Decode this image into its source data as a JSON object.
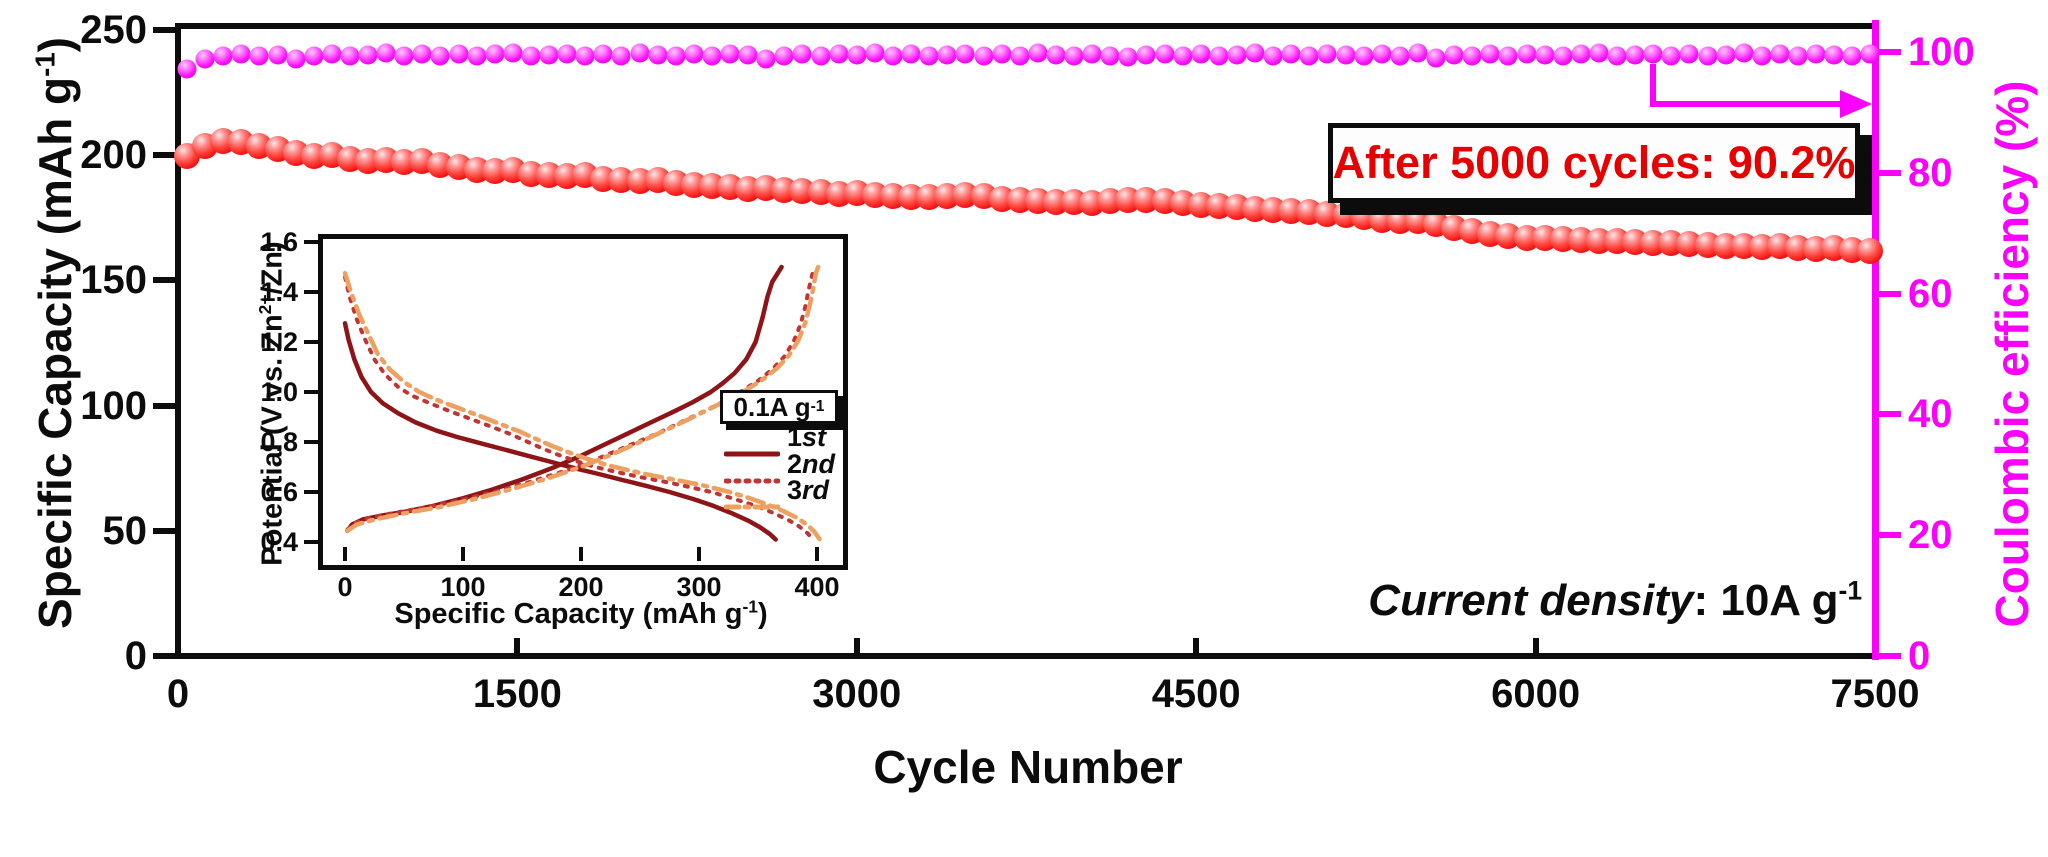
{
  "figure": {
    "annotation": {
      "text": "After 5000 cycles: 90.2%"
    },
    "current_density": {
      "italic": "Current density",
      "rest": ": 10A g",
      "sup": "-1"
    },
    "colors": {
      "capacity_red": "#f41515",
      "efficiency_magenta": "#fb00fb",
      "annotation_red": "#e60000",
      "axis_black": "#0c0c0c",
      "curve_1st": "#8e1418",
      "curve_2nd": "#c03434",
      "curve_3rd": "#eda05f"
    }
  },
  "chart_data": [
    {
      "type": "scatter",
      "title": "",
      "xlabel": "Cycle Number",
      "ylabel_left": {
        "pre": "Specific Capacity (mAh g",
        "sup": "-1",
        "post": ")"
      },
      "ylabel_right": "Coulombic efficiency (%)",
      "xlim": [
        0,
        7500
      ],
      "ylim_left": [
        0,
        250
      ],
      "ylim_right": [
        0,
        100
      ],
      "x_ticks": [
        0,
        1500,
        3000,
        4500,
        6000,
        7500
      ],
      "y_ticks_left": [
        0,
        50,
        100,
        150,
        200,
        250
      ],
      "y_ticks_right": [
        0,
        20,
        40,
        60,
        80,
        100
      ],
      "grid": false,
      "cycles": [
        40,
        120,
        200,
        280,
        360,
        440,
        520,
        600,
        680,
        760,
        840,
        920,
        1000,
        1080,
        1160,
        1240,
        1320,
        1400,
        1480,
        1560,
        1640,
        1720,
        1800,
        1880,
        1960,
        2040,
        2120,
        2200,
        2280,
        2360,
        2440,
        2520,
        2600,
        2680,
        2760,
        2840,
        2920,
        3000,
        3080,
        3160,
        3240,
        3320,
        3400,
        3480,
        3560,
        3640,
        3720,
        3800,
        3880,
        3960,
        4040,
        4120,
        4200,
        4280,
        4360,
        4440,
        4520,
        4600,
        4680,
        4760,
        4840,
        4920,
        5000,
        5080,
        5160,
        5240,
        5320,
        5400,
        5480,
        5560,
        5640,
        5720,
        5800,
        5880,
        5960,
        6040,
        6120,
        6200,
        6280,
        6360,
        6440,
        6520,
        6600,
        6680,
        6760,
        6840,
        6920,
        7000,
        7080,
        7160,
        7240,
        7320,
        7400,
        7480
      ],
      "series": [
        {
          "name": "Specific Capacity",
          "axis": "left",
          "marker": "red-ball",
          "values": [
            199.6,
            203.8,
            205.6,
            205.2,
            203.6,
            202.6,
            200.8,
            199.6,
            199.9,
            198.6,
            197.6,
            197.9,
            197.1,
            197.6,
            196.1,
            195.2,
            194.2,
            193.6,
            193.9,
            192.6,
            192.1,
            191.6,
            191.9,
            190.6,
            190.1,
            189.6,
            189.9,
            188.7,
            188.2,
            187.7,
            187.2,
            186.7,
            187.0,
            186.2,
            185.7,
            185.2,
            184.7,
            185.0,
            184.2,
            183.7,
            183.2,
            183.4,
            183.7,
            184.1,
            183.6,
            182.7,
            182.2,
            181.7,
            181.2,
            181.4,
            181.1,
            181.6,
            182.1,
            182.3,
            181.9,
            181.1,
            180.2,
            179.7,
            179.2,
            178.7,
            178.2,
            177.7,
            177.2,
            176.7,
            176.1,
            175.2,
            174.3,
            173.7,
            173.9,
            172.6,
            171.1,
            169.6,
            168.6,
            167.6,
            167.1,
            166.9,
            166.6,
            166.1,
            165.9,
            165.6,
            165.3,
            165.1,
            164.9,
            164.6,
            164.1,
            163.9,
            163.6,
            163.3,
            163.6,
            163.1,
            162.6,
            162.9,
            162.1,
            161.6
          ]
        },
        {
          "name": "Coulombic efficiency",
          "axis": "right",
          "marker": "magenta-ball",
          "values": [
            97.2,
            98.9,
            99.4,
            99.6,
            99.3,
            99.5,
            98.9,
            99.4,
            99.7,
            99.3,
            99.5,
            99.8,
            99.4,
            99.6,
            99.3,
            99.7,
            99.4,
            99.6,
            99.8,
            99.3,
            99.5,
            99.7,
            99.4,
            99.6,
            99.3,
            99.8,
            99.5,
            99.3,
            99.6,
            99.4,
            99.7,
            99.5,
            98.9,
            99.4,
            99.6,
            99.3,
            99.7,
            99.5,
            99.8,
            99.4,
            99.6,
            99.3,
            99.5,
            99.7,
            99.4,
            99.6,
            99.3,
            99.8,
            99.5,
            99.4,
            99.6,
            99.3,
            99.1,
            99.5,
            99.7,
            99.4,
            99.6,
            99.3,
            99.5,
            99.8,
            99.4,
            99.6,
            99.3,
            99.7,
            99.5,
            99.4,
            99.6,
            99.3,
            99.8,
            99.0,
            99.5,
            99.4,
            99.6,
            99.3,
            99.7,
            99.5,
            99.4,
            99.6,
            99.8,
            99.3,
            99.5,
            99.7,
            99.4,
            99.6,
            99.3,
            99.5,
            99.8,
            99.4,
            99.6,
            99.3,
            99.7,
            99.5,
            99.4,
            99.6
          ]
        }
      ]
    },
    {
      "type": "line",
      "title": "",
      "xlabel": {
        "pre": "Specific Capacity (mAh g",
        "sup": "-1",
        "post": ")"
      },
      "ylabel": {
        "pre": "Potential (V vs. Zn",
        "sup": "2+",
        "post": "/Zn)"
      },
      "xlim": [
        0,
        400
      ],
      "ylim": [
        0.3,
        1.6
      ],
      "x_ticks": [
        0,
        100,
        200,
        300,
        400
      ],
      "y_ticks": [
        0.4,
        0.6,
        0.8,
        1.0,
        1.2,
        1.4,
        1.6
      ],
      "grid": false,
      "legend": {
        "title": {
          "pre": "0.1A g",
          "sup": "-1"
        },
        "entries": [
          {
            "num": "1",
            "suffix": "st",
            "style": "solid",
            "color": "#8e1418"
          },
          {
            "num": "2",
            "suffix": "nd",
            "style": "dotted",
            "color": "#c03434"
          },
          {
            "num": "3",
            "suffix": "rd",
            "style": "dashdot",
            "color": "#eda05f"
          }
        ]
      },
      "series": [
        {
          "name": "1st charge",
          "style": "solid",
          "color": "#8e1418",
          "points": [
            [
              2,
              0.445
            ],
            [
              6,
              0.47
            ],
            [
              15,
              0.49
            ],
            [
              30,
              0.505
            ],
            [
              50,
              0.52
            ],
            [
              75,
              0.545
            ],
            [
              100,
              0.575
            ],
            [
              125,
              0.61
            ],
            [
              150,
              0.65
            ],
            [
              175,
              0.695
            ],
            [
              200,
              0.745
            ],
            [
              220,
              0.79
            ],
            [
              240,
              0.835
            ],
            [
              260,
              0.88
            ],
            [
              280,
              0.925
            ],
            [
              295,
              0.96
            ],
            [
              310,
              1.0
            ],
            [
              320,
              1.035
            ],
            [
              330,
              1.075
            ],
            [
              340,
              1.13
            ],
            [
              348,
              1.2
            ],
            [
              354,
              1.3
            ],
            [
              358,
              1.38
            ],
            [
              362,
              1.44
            ],
            [
              366,
              1.47
            ],
            [
              370,
              1.5
            ]
          ]
        },
        {
          "name": "1st discharge",
          "style": "solid",
          "color": "#8e1418",
          "points": [
            [
              0,
              1.275
            ],
            [
              3,
              1.21
            ],
            [
              8,
              1.13
            ],
            [
              14,
              1.06
            ],
            [
              22,
              1.0
            ],
            [
              32,
              0.955
            ],
            [
              45,
              0.915
            ],
            [
              60,
              0.878
            ],
            [
              78,
              0.845
            ],
            [
              95,
              0.82
            ],
            [
              115,
              0.795
            ],
            [
              135,
              0.77
            ],
            [
              155,
              0.745
            ],
            [
              175,
              0.72
            ],
            [
              195,
              0.695
            ],
            [
              215,
              0.672
            ],
            [
              235,
              0.648
            ],
            [
              255,
              0.625
            ],
            [
              275,
              0.6
            ],
            [
              295,
              0.572
            ],
            [
              312,
              0.545
            ],
            [
              328,
              0.515
            ],
            [
              342,
              0.485
            ],
            [
              352,
              0.458
            ],
            [
              360,
              0.432
            ],
            [
              365,
              0.41
            ]
          ]
        },
        {
          "name": "2nd charge",
          "style": "dotted",
          "color": "#c03434",
          "points": [
            [
              2,
              0.45
            ],
            [
              8,
              0.475
            ],
            [
              20,
              0.495
            ],
            [
              40,
              0.515
            ],
            [
              70,
              0.54
            ],
            [
              100,
              0.57
            ],
            [
              130,
              0.605
            ],
            [
              160,
              0.645
            ],
            [
              190,
              0.69
            ],
            [
              215,
              0.735
            ],
            [
              240,
              0.785
            ],
            [
              265,
              0.835
            ],
            [
              285,
              0.88
            ],
            [
              305,
              0.925
            ],
            [
              320,
              0.96
            ],
            [
              335,
              1.0
            ],
            [
              350,
              1.045
            ],
            [
              362,
              1.09
            ],
            [
              372,
              1.14
            ],
            [
              380,
              1.2
            ],
            [
              386,
              1.27
            ],
            [
              390,
              1.34
            ],
            [
              393,
              1.41
            ],
            [
              396,
              1.47
            ],
            [
              398,
              1.5
            ]
          ]
        },
        {
          "name": "2nd discharge",
          "style": "dotted",
          "color": "#c03434",
          "points": [
            [
              0,
              1.46
            ],
            [
              4,
              1.38
            ],
            [
              10,
              1.29
            ],
            [
              17,
              1.21
            ],
            [
              25,
              1.13
            ],
            [
              34,
              1.07
            ],
            [
              45,
              1.02
            ],
            [
              57,
              0.985
            ],
            [
              72,
              0.955
            ],
            [
              88,
              0.925
            ],
            [
              105,
              0.895
            ],
            [
              122,
              0.865
            ],
            [
              140,
              0.832
            ],
            [
              155,
              0.8
            ],
            [
              168,
              0.773
            ],
            [
              180,
              0.75
            ],
            [
              195,
              0.725
            ],
            [
              212,
              0.7
            ],
            [
              232,
              0.678
            ],
            [
              252,
              0.658
            ],
            [
              272,
              0.64
            ],
            [
              292,
              0.62
            ],
            [
              312,
              0.598
            ],
            [
              330,
              0.572
            ],
            [
              348,
              0.545
            ],
            [
              362,
              0.518
            ],
            [
              375,
              0.49
            ],
            [
              385,
              0.462
            ],
            [
              392,
              0.435
            ],
            [
              397,
              0.408
            ]
          ]
        },
        {
          "name": "3rd charge",
          "style": "dashdot",
          "color": "#eda05f",
          "points": [
            [
              2,
              0.445
            ],
            [
              10,
              0.47
            ],
            [
              25,
              0.49
            ],
            [
              50,
              0.515
            ],
            [
              80,
              0.54
            ],
            [
              110,
              0.572
            ],
            [
              140,
              0.61
            ],
            [
              170,
              0.652
            ],
            [
              200,
              0.7
            ],
            [
              225,
              0.748
            ],
            [
              250,
              0.8
            ],
            [
              272,
              0.848
            ],
            [
              292,
              0.893
            ],
            [
              310,
              0.935
            ],
            [
              325,
              0.97
            ],
            [
              340,
              1.008
            ],
            [
              354,
              1.05
            ],
            [
              366,
              1.095
            ],
            [
              376,
              1.145
            ],
            [
              384,
              1.205
            ],
            [
              390,
              1.275
            ],
            [
              394,
              1.35
            ],
            [
              397,
              1.42
            ],
            [
              399,
              1.475
            ],
            [
              401,
              1.5
            ]
          ]
        },
        {
          "name": "3rd discharge",
          "style": "dashdot",
          "color": "#eda05f",
          "points": [
            [
              0,
              1.475
            ],
            [
              5,
              1.4
            ],
            [
              12,
              1.31
            ],
            [
              20,
              1.23
            ],
            [
              28,
              1.15
            ],
            [
              38,
              1.09
            ],
            [
              50,
              1.04
            ],
            [
              63,
              1.0
            ],
            [
              78,
              0.968
            ],
            [
              95,
              0.938
            ],
            [
              112,
              0.908
            ],
            [
              130,
              0.875
            ],
            [
              148,
              0.842
            ],
            [
              163,
              0.81
            ],
            [
              176,
              0.783
            ],
            [
              190,
              0.758
            ],
            [
              205,
              0.733
            ],
            [
              222,
              0.708
            ],
            [
              242,
              0.685
            ],
            [
              262,
              0.665
            ],
            [
              282,
              0.647
            ],
            [
              302,
              0.628
            ],
            [
              322,
              0.605
            ],
            [
              340,
              0.58
            ],
            [
              357,
              0.552
            ],
            [
              371,
              0.525
            ],
            [
              383,
              0.497
            ],
            [
              392,
              0.468
            ],
            [
              398,
              0.44
            ],
            [
              402,
              0.412
            ]
          ]
        }
      ]
    }
  ]
}
